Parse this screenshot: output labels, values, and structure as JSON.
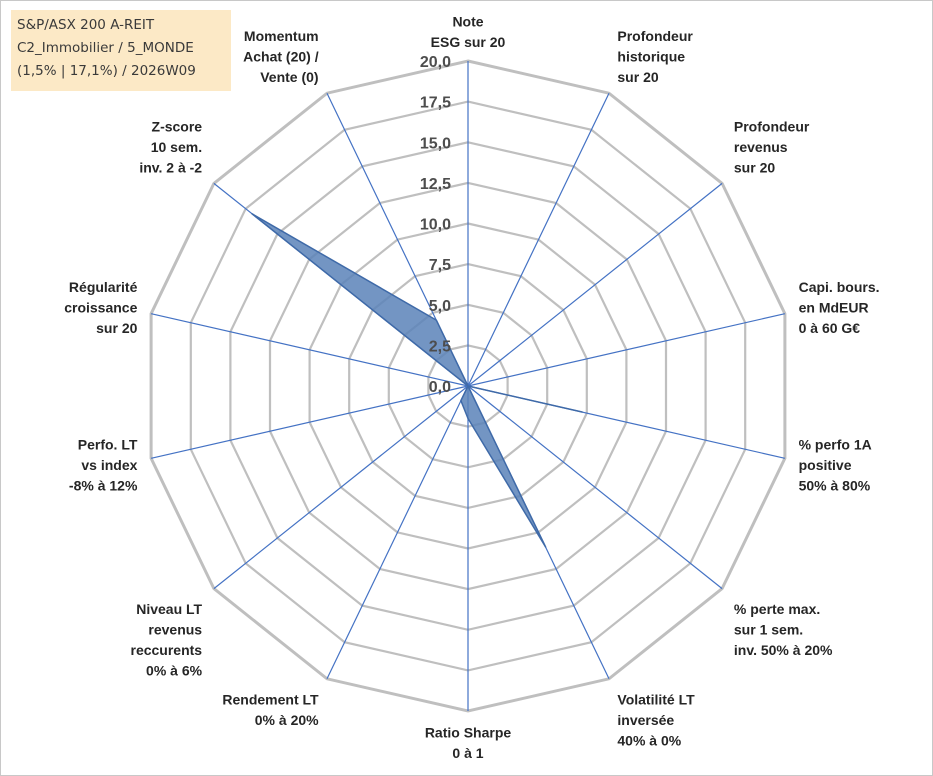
{
  "info_box": {
    "line1": "S&P/ASX 200 A-REIT",
    "line2": "C2_Immobilier / 5_MONDE",
    "line3": "(1,5% | 17,1%) / 2026W09"
  },
  "colors": {
    "fill": "#5b82b8",
    "stroke": "#3f6aa8",
    "grid_ring": "#bfbfbf",
    "spoke": "#4472c4"
  },
  "chart_data": {
    "type": "radar",
    "rmin": 0,
    "rmax": 20,
    "grid": true,
    "ticks": [
      "0,0",
      "2,5",
      "5,0",
      "7,5",
      "10,0",
      "12,5",
      "15,0",
      "17,5",
      "20,0"
    ],
    "axes": [
      [
        "Note",
        "ESG sur 20"
      ],
      [
        "Profondeur",
        "historique",
        "sur 20"
      ],
      [
        "Profondeur",
        "revenus",
        "sur 20"
      ],
      [
        "Capi. bours.",
        "en MdEUR",
        "0 à 60 G€"
      ],
      [
        "% perfo 1A",
        "positive",
        "50% à 80%"
      ],
      [
        "% perte max.",
        "sur 1 sem.",
        "inv. 50% à 20%"
      ],
      [
        "Volatilité LT",
        "inversée",
        "40% à 0%"
      ],
      [
        "Ratio Sharpe",
        "0 à 1"
      ],
      [
        "Rendement LT",
        "0% à 20%"
      ],
      [
        "Niveau LT",
        "revenus",
        "reccurents",
        "0% à 6%"
      ],
      [
        "Perfo. LT",
        "vs index",
        "-8% à 12%"
      ],
      [
        "Régularité",
        "croissance",
        "sur 20"
      ],
      [
        "Z-score",
        "10 sem.",
        "inv. 2 à -2"
      ],
      [
        "Momentum",
        "Achat (20) /",
        "Vente (0)"
      ]
    ],
    "values": [
      0,
      0,
      0,
      0,
      7.2,
      0,
      11.0,
      2.0,
      1.0,
      0,
      0,
      0,
      17.0,
      4.5
    ]
  }
}
